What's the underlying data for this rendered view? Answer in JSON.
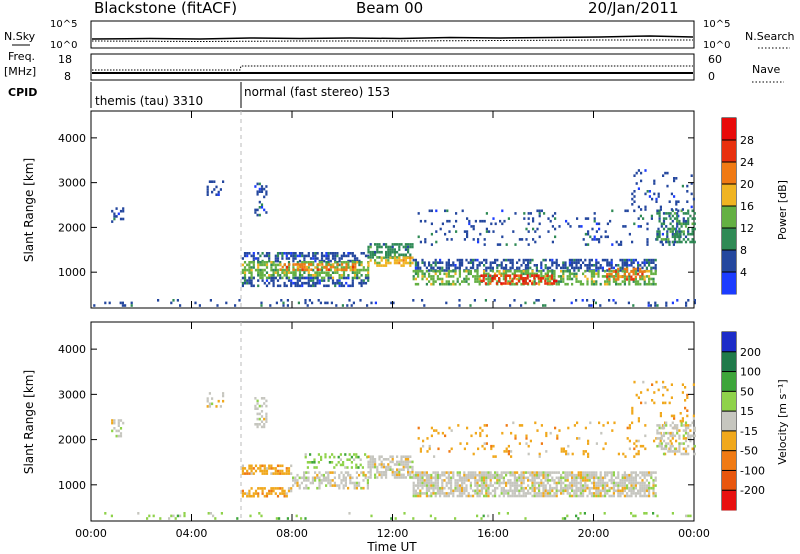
{
  "header": {
    "title": "Blackstone (fitACF)",
    "beam": "Beam 00",
    "date": "20/Jan/2011"
  },
  "top_panels": {
    "nsky_label": "N.Sky",
    "nsky_ticks": [
      "10^5",
      "10^0"
    ],
    "nsearch_label": "N.Search",
    "nsearch_ticks": [
      "10^5",
      "10^0"
    ],
    "freq_label": "Freq.",
    "freq_unit": "[MHz]",
    "freq_ticks": [
      "18",
      "8"
    ],
    "nave_label": "Nave",
    "nave_ticks": [
      "60",
      "0"
    ],
    "cpid_label": "CPID",
    "cpid_segments": [
      {
        "label": "themis (tau) 3310",
        "start_hour": 0,
        "end_hour": 6
      },
      {
        "label": "normal (fast stereo) 153",
        "start_hour": 6,
        "end_hour": 24
      }
    ]
  },
  "chart_data": [
    {
      "type": "heatmap",
      "name": "power-panel",
      "ylabel": "Slant Range [km]",
      "yticks": [
        "1000",
        "2000",
        "3000",
        "4000"
      ],
      "ylim": [
        200,
        4600
      ],
      "xlim": [
        0,
        24
      ],
      "colorbar_label": "Power [dB]",
      "colorbar_ticks": [
        "4",
        "8",
        "12",
        "16",
        "20",
        "24",
        "28"
      ],
      "colors": [
        "#1c3cff",
        "#24479e",
        "#2f8a55",
        "#64b043",
        "#f0b422",
        "#f07a14",
        "#e8300e",
        "#e80a0a"
      ],
      "scatter_regions": [
        {
          "x0": 0.8,
          "x1": 1.3,
          "y0": 2050,
          "y1": 2450,
          "level": 1,
          "density": 0.35
        },
        {
          "x0": 4.6,
          "x1": 5.3,
          "y0": 2750,
          "y1": 3050,
          "level": 1,
          "density": 0.3
        },
        {
          "x0": 6.5,
          "x1": 7.0,
          "y0": 2300,
          "y1": 3000,
          "level": 1,
          "density": 0.35
        },
        {
          "x0": 6.0,
          "x1": 11.0,
          "y0": 1250,
          "y1": 1450,
          "level": 1,
          "density": 0.55
        },
        {
          "x0": 6.0,
          "x1": 11.0,
          "y0": 900,
          "y1": 1250,
          "level": 3,
          "density": 0.6
        },
        {
          "x0": 6.0,
          "x1": 11.0,
          "y0": 700,
          "y1": 900,
          "level": 1,
          "density": 0.5
        },
        {
          "x0": 7.5,
          "x1": 10.5,
          "y0": 1050,
          "y1": 1200,
          "level": 5,
          "density": 0.55
        },
        {
          "x0": 11.0,
          "x1": 12.8,
          "y0": 1350,
          "y1": 1650,
          "level": 2,
          "density": 0.6
        },
        {
          "x0": 11.0,
          "x1": 12.8,
          "y0": 1150,
          "y1": 1350,
          "level": 4,
          "density": 0.55
        },
        {
          "x0": 12.8,
          "x1": 22.5,
          "y0": 1050,
          "y1": 1300,
          "level": 1,
          "density": 0.55
        },
        {
          "x0": 12.8,
          "x1": 22.5,
          "y0": 750,
          "y1": 1050,
          "level": 3,
          "density": 0.55
        },
        {
          "x0": 15.5,
          "x1": 18.5,
          "y0": 750,
          "y1": 950,
          "level": 6,
          "density": 0.45
        },
        {
          "x0": 20.5,
          "x1": 22.0,
          "y0": 850,
          "y1": 1100,
          "level": 5,
          "density": 0.45
        },
        {
          "x0": 13.0,
          "x1": 23.5,
          "y0": 1600,
          "y1": 2400,
          "level": 1,
          "density": 0.1
        },
        {
          "x0": 22.5,
          "x1": 24.0,
          "y0": 1700,
          "y1": 2400,
          "level": 2,
          "density": 0.5
        },
        {
          "x0": 21.5,
          "x1": 24.0,
          "y0": 2400,
          "y1": 3300,
          "level": 1,
          "density": 0.15
        },
        {
          "x0": 0.0,
          "x1": 24.0,
          "y0": 250,
          "y1": 400,
          "level": 1,
          "density": 0.12
        }
      ]
    },
    {
      "type": "heatmap",
      "name": "velocity-panel",
      "ylabel": "Slant Range [km]",
      "yticks": [
        "1000",
        "2000",
        "3000",
        "4000"
      ],
      "ylim": [
        200,
        4600
      ],
      "xlabel": "Time UT",
      "xticks": [
        "00:00",
        "04:00",
        "08:00",
        "12:00",
        "16:00",
        "20:00",
        "00:00"
      ],
      "xlim": [
        0,
        24
      ],
      "colorbar_label": "Velocity [m s⁻¹]",
      "colorbar_ticks": [
        "200",
        "100",
        "50",
        "15",
        "-15",
        "-50",
        "-100",
        "-200"
      ],
      "colors": [
        "#1c2cc8",
        "#1f7a4a",
        "#3da53a",
        "#8fd24a",
        "#c6c6bf",
        "#f0a81c",
        "#f07a14",
        "#e8560e",
        "#e81010"
      ],
      "scatter_regions": [
        {
          "x0": 0.8,
          "x1": 1.3,
          "y0": 2050,
          "y1": 2450,
          "level": 4,
          "density": 0.3
        },
        {
          "x0": 4.6,
          "x1": 5.3,
          "y0": 2750,
          "y1": 3050,
          "level": 4,
          "density": 0.3
        },
        {
          "x0": 6.5,
          "x1": 7.0,
          "y0": 2300,
          "y1": 3000,
          "level": 4,
          "density": 0.35
        },
        {
          "x0": 6.0,
          "x1": 8.0,
          "y0": 1250,
          "y1": 1450,
          "level": 5,
          "density": 0.6
        },
        {
          "x0": 6.0,
          "x1": 8.0,
          "y0": 750,
          "y1": 950,
          "level": 5,
          "density": 0.6
        },
        {
          "x0": 8.0,
          "x1": 11.0,
          "y0": 900,
          "y1": 1300,
          "level": 4,
          "density": 0.55
        },
        {
          "x0": 8.5,
          "x1": 11.0,
          "y0": 1400,
          "y1": 1700,
          "level": 3,
          "density": 0.3
        },
        {
          "x0": 11.0,
          "x1": 12.8,
          "y0": 1150,
          "y1": 1650,
          "level": 4,
          "density": 0.6
        },
        {
          "x0": 12.8,
          "x1": 22.5,
          "y0": 750,
          "y1": 1300,
          "level": 4,
          "density": 0.75
        },
        {
          "x0": 13.0,
          "x1": 23.5,
          "y0": 1600,
          "y1": 2400,
          "level": 5,
          "density": 0.08
        },
        {
          "x0": 22.5,
          "x1": 24.0,
          "y0": 1700,
          "y1": 2400,
          "level": 4,
          "density": 0.45
        },
        {
          "x0": 21.5,
          "x1": 24.0,
          "y0": 2400,
          "y1": 3300,
          "level": 5,
          "density": 0.12
        },
        {
          "x0": 0.0,
          "x1": 24.0,
          "y0": 250,
          "y1": 400,
          "level": 3,
          "density": 0.1
        }
      ]
    }
  ]
}
